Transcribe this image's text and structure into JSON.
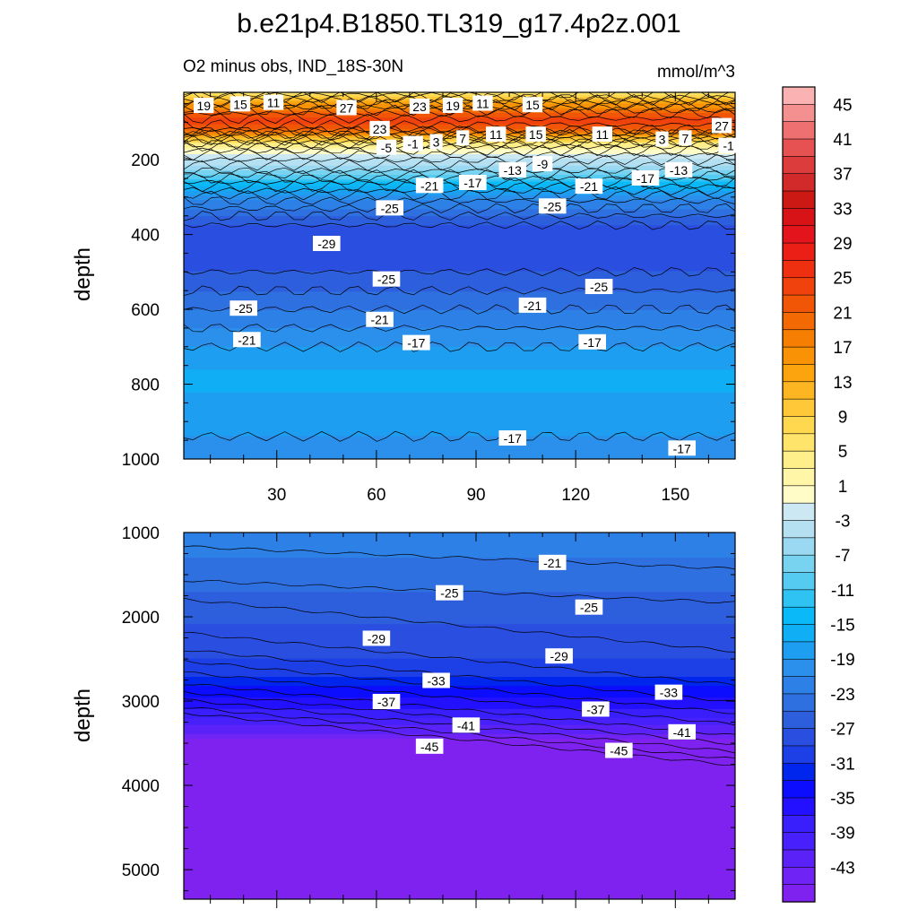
{
  "title": "b.e21p4.B1850.TL319_g17.4p2z.001",
  "chart_data": [
    {
      "type": "heatmap",
      "panel": "upper",
      "subtitle_left": "O2 minus obs, IND_18S-30N",
      "subtitle_right": "mmol/m^3",
      "ylabel": "depth",
      "xlim": [
        2,
        168
      ],
      "ylim": [
        1000,
        20
      ],
      "y_reversed": true,
      "x_ticks": [
        "30",
        "60",
        "90",
        "120",
        "150"
      ],
      "y_ticks": [
        "200",
        "400",
        "600",
        "800",
        "1000"
      ],
      "fill_profile": {
        "depths": [
          20,
          60,
          80,
          100,
          120,
          140,
          160,
          180,
          200,
          230,
          260,
          300,
          350,
          400,
          450,
          500,
          550,
          600,
          650,
          700,
          760,
          820,
          880,
          940,
          1000
        ],
        "values": [
          5,
          17,
          22,
          24,
          21,
          12,
          4,
          0,
          -3,
          -7,
          -13,
          -20,
          -25,
          -29,
          -29,
          -27,
          -25,
          -23,
          -21,
          -19,
          -17,
          -17,
          -18,
          -19,
          -21
        ]
      },
      "contour_labels": [
        {
          "x": 8,
          "y": 56,
          "text": "19"
        },
        {
          "x": 19,
          "y": 52,
          "text": "15"
        },
        {
          "x": 29,
          "y": 48,
          "text": "11"
        },
        {
          "x": 51,
          "y": 62,
          "text": "27"
        },
        {
          "x": 73,
          "y": 58,
          "text": "23"
        },
        {
          "x": 83,
          "y": 56,
          "text": "19"
        },
        {
          "x": 92,
          "y": 50,
          "text": "11"
        },
        {
          "x": 107,
          "y": 54,
          "text": "15"
        },
        {
          "x": 164,
          "y": 110,
          "text": "27"
        },
        {
          "x": 61,
          "y": 118,
          "text": "23"
        },
        {
          "x": 63,
          "y": 168,
          "text": "-5"
        },
        {
          "x": 71,
          "y": 158,
          "text": "-1"
        },
        {
          "x": 78,
          "y": 153,
          "text": "3"
        },
        {
          "x": 86,
          "y": 143,
          "text": "7"
        },
        {
          "x": 96,
          "y": 133,
          "text": "11"
        },
        {
          "x": 108,
          "y": 133,
          "text": "15"
        },
        {
          "x": 128,
          "y": 133,
          "text": "11"
        },
        {
          "x": 146,
          "y": 146,
          "text": "3"
        },
        {
          "x": 153,
          "y": 143,
          "text": "7"
        },
        {
          "x": 166,
          "y": 163,
          "text": "-1"
        },
        {
          "x": 110,
          "y": 212,
          "text": "-9"
        },
        {
          "x": 101,
          "y": 228,
          "text": "-13"
        },
        {
          "x": 151,
          "y": 228,
          "text": "-13"
        },
        {
          "x": 89,
          "y": 262,
          "text": "-17"
        },
        {
          "x": 141,
          "y": 250,
          "text": "-17"
        },
        {
          "x": 76,
          "y": 270,
          "text": "-21"
        },
        {
          "x": 124,
          "y": 272,
          "text": "-21"
        },
        {
          "x": 64,
          "y": 330,
          "text": "-25"
        },
        {
          "x": 113,
          "y": 325,
          "text": "-25"
        },
        {
          "x": 45,
          "y": 425,
          "text": "-29"
        },
        {
          "x": 63,
          "y": 520,
          "text": "-25"
        },
        {
          "x": 127,
          "y": 540,
          "text": "-25"
        },
        {
          "x": 20,
          "y": 598,
          "text": "-25"
        },
        {
          "x": 107,
          "y": 590,
          "text": "-21"
        },
        {
          "x": 61,
          "y": 628,
          "text": "-21"
        },
        {
          "x": 21,
          "y": 682,
          "text": "-21"
        },
        {
          "x": 72,
          "y": 690,
          "text": "-17"
        },
        {
          "x": 125,
          "y": 688,
          "text": "-17"
        },
        {
          "x": 101,
          "y": 945,
          "text": "-17"
        },
        {
          "x": 152,
          "y": 972,
          "text": "-17"
        }
      ]
    },
    {
      "type": "heatmap",
      "panel": "lower",
      "ylabel": "depth",
      "xlim": [
        2,
        168
      ],
      "ylim": [
        5350,
        1000
      ],
      "y_reversed": true,
      "y_ticks": [
        "1000",
        "2000",
        "3000",
        "4000",
        "5000"
      ],
      "fill_profile": {
        "depths": [
          1000,
          1300,
          1700,
          2100,
          2500,
          2700,
          2900,
          3100,
          3250,
          3380,
          3450,
          3550,
          5350
        ],
        "values": [
          -22,
          -23,
          -25,
          -27,
          -29,
          -31,
          -34,
          -37,
          -40,
          -43,
          -45,
          -47,
          -47
        ]
      },
      "contour_labels": [
        {
          "x": 113,
          "y": 1360,
          "text": "-21"
        },
        {
          "x": 82,
          "y": 1720,
          "text": "-25"
        },
        {
          "x": 124,
          "y": 1890,
          "text": "-25"
        },
        {
          "x": 60,
          "y": 2260,
          "text": "-29"
        },
        {
          "x": 115,
          "y": 2470,
          "text": "-29"
        },
        {
          "x": 78,
          "y": 2760,
          "text": "-33"
        },
        {
          "x": 148,
          "y": 2900,
          "text": "-33"
        },
        {
          "x": 63,
          "y": 3010,
          "text": "-37"
        },
        {
          "x": 126,
          "y": 3100,
          "text": "-37"
        },
        {
          "x": 87,
          "y": 3290,
          "text": "-41"
        },
        {
          "x": 152,
          "y": 3370,
          "text": "-41"
        },
        {
          "x": 76,
          "y": 3540,
          "text": "-45"
        },
        {
          "x": 133,
          "y": 3590,
          "text": "-45"
        }
      ]
    }
  ],
  "colorbar": {
    "labels": [
      "45",
      "41",
      "37",
      "33",
      "29",
      "25",
      "21",
      "17",
      "13",
      "9",
      "5",
      "1",
      "-3",
      "-7",
      "-11",
      "-15",
      "-19",
      "-23",
      "-27",
      "-31",
      "-35",
      "-39",
      "-43"
    ],
    "levels": [
      -47,
      -45,
      -43,
      -41,
      -39,
      -37,
      -35,
      -33,
      -31,
      -29,
      -27,
      -25,
      -23,
      -21,
      -19,
      -17,
      -15,
      -13,
      -11,
      -9,
      -7,
      -5,
      -3,
      -1,
      1,
      3,
      5,
      7,
      9,
      11,
      13,
      15,
      17,
      19,
      21,
      23,
      25,
      27,
      29,
      31,
      33,
      35,
      37,
      39,
      41,
      43,
      45,
      47
    ],
    "colors": [
      "#7f22ef",
      "#6f24f5",
      "#5b22f8",
      "#4820fb",
      "#3a1ffd",
      "#2210ff",
      "#0c0cff",
      "#0026ee",
      "#1d3fe6",
      "#2a4ee0",
      "#2d5fdd",
      "#2f70e0",
      "#2d81e6",
      "#2b90eb",
      "#1e9ef0",
      "#10aef4",
      "#0ab9f7",
      "#2fc3f4",
      "#55cbf2",
      "#78d3f1",
      "#9ad9f1",
      "#b4e0f1",
      "#cce8f3",
      "#fffcc8",
      "#fff6a8",
      "#ffef8a",
      "#ffe46b",
      "#ffd84f",
      "#fec838",
      "#fdb621",
      "#fca40e",
      "#f99205",
      "#f57e03",
      "#f36a05",
      "#f15607",
      "#f0420c",
      "#ee2f10",
      "#eb1f16",
      "#e3141c",
      "#d81317",
      "#cc1914",
      "#d22a2a",
      "#dc3c3c",
      "#e65252",
      "#ee7070",
      "#f59090",
      "#fab2b2"
    ]
  }
}
